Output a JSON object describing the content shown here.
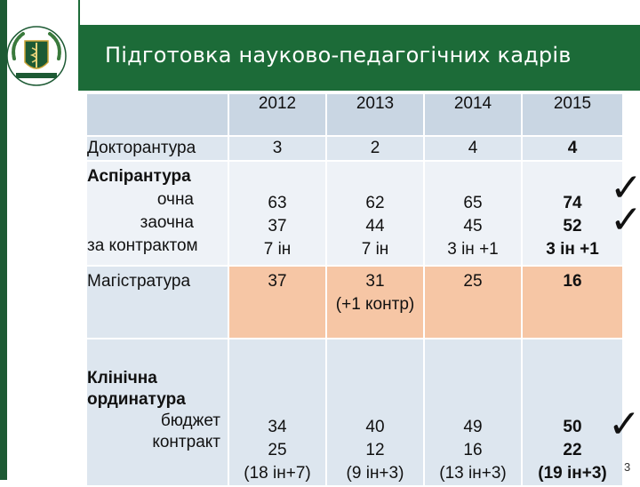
{
  "title": "Підготовка науково-педагогічних кадрів",
  "page_number": "3",
  "colors": {
    "header": "#1c6b38",
    "orange": "#f6c6a5",
    "blue": "#c9d6e3"
  },
  "table": {
    "years": [
      "2012",
      "2013",
      "2014",
      "2015"
    ],
    "doctorate": {
      "label": "Докторантура",
      "values": [
        "3",
        "2",
        "4",
        "4"
      ]
    },
    "postgraduate": {
      "label": "Аспірантура",
      "sub_labels": [
        "очна",
        "заочна",
        "за контрактом"
      ],
      "values": [
        [
          "63",
          "37",
          "7 ін"
        ],
        [
          "62",
          "44",
          "7 ін"
        ],
        [
          "65",
          "45",
          "3 ін +1"
        ],
        [
          "74",
          "52",
          "3 ін +1"
        ]
      ]
    },
    "masters": {
      "label": "Магістратура",
      "values": [
        "37",
        "31",
        "25",
        "16"
      ],
      "extra_2013": "(+1 контр)"
    },
    "residency": {
      "label_line1": "Клінічна",
      "label_line2": "ординатура",
      "sub_labels": [
        "бюджет",
        "контракт"
      ],
      "values": [
        [
          "34",
          "25",
          "(18 ін+7)"
        ],
        [
          "40",
          "12",
          "(9 ін+3)"
        ],
        [
          "49",
          "16",
          "(13 ін+3)"
        ],
        [
          "50",
          "22",
          "(19 ін+3)"
        ]
      ]
    }
  },
  "checkmark": "✓"
}
